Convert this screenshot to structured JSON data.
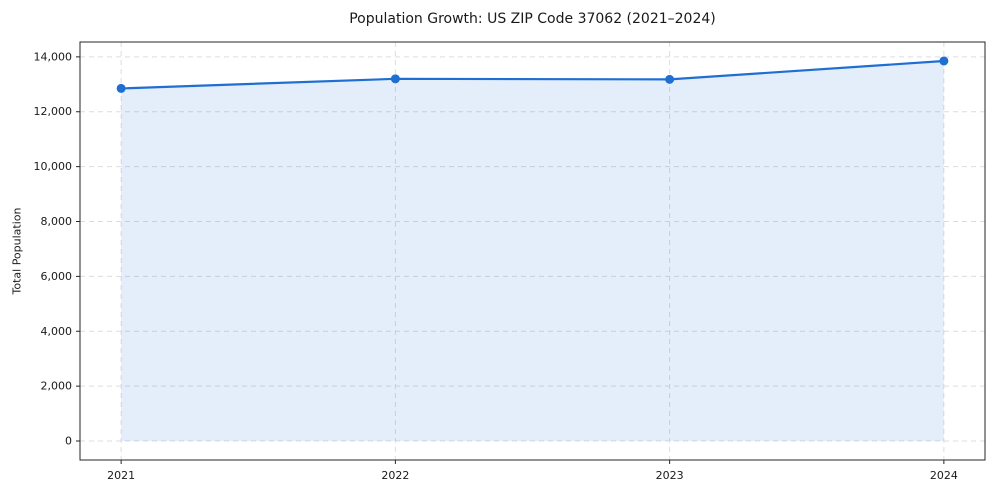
{
  "page": {
    "background": "#ffffff"
  },
  "chart_data": {
    "type": "area",
    "title": "Population Growth: US ZIP Code 37062 (2021–2024)",
    "xlabel": "",
    "ylabel": "Total Population",
    "x": [
      2021,
      2022,
      2023,
      2024
    ],
    "x_tick_labels": [
      "2021",
      "2022",
      "2023",
      "2024"
    ],
    "series": [
      {
        "name": "Total Population",
        "values": [
          12850,
          13200,
          13180,
          13850
        ]
      }
    ],
    "yticks": [
      0,
      2000,
      4000,
      6000,
      8000,
      10000,
      12000,
      14000
    ],
    "ytick_labels": [
      "0",
      "2,000",
      "4,000",
      "6,000",
      "8,000",
      "10,000",
      "12,000",
      "14,000"
    ],
    "xlim": [
      2020.85,
      2024.15
    ],
    "ylim": [
      -692,
      14542
    ],
    "grid": true,
    "grid_style": "dashed",
    "legend": "none",
    "marker": "circle",
    "colors": {
      "line": "#1f6fd2",
      "marker": "#1f6fd2",
      "fill": "#1f6fd2",
      "fill_opacity": 0.12,
      "grid": "#d9dde2",
      "axis": "#262626",
      "text": "#1a1a1a"
    }
  }
}
